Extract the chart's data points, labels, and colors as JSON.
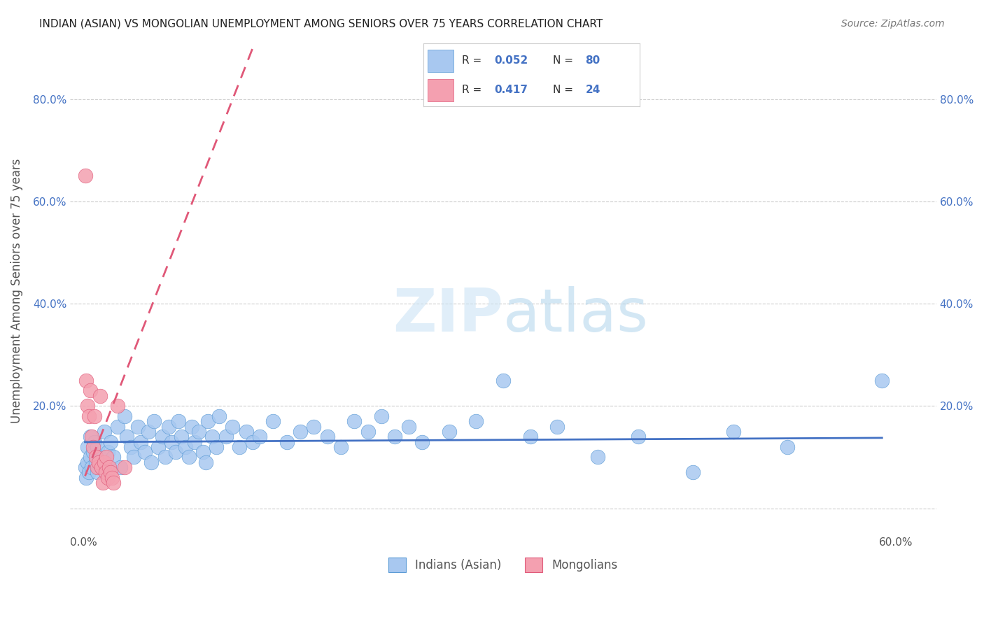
{
  "title": "INDIAN (ASIAN) VS MONGOLIAN UNEMPLOYMENT AMONG SENIORS OVER 75 YEARS CORRELATION CHART",
  "source": "Source: ZipAtlas.com",
  "ylabel": "Unemployment Among Seniors over 75 years",
  "ylim": [
    -0.05,
    0.9
  ],
  "xlim": [
    -0.01,
    0.63
  ],
  "indian_R": 0.052,
  "indian_N": 80,
  "mongolian_R": 0.417,
  "mongolian_N": 24,
  "legend_label_indian": "Indians (Asian)",
  "legend_label_mongolian": "Mongolians",
  "indian_color": "#a8c8f0",
  "indian_color_dark": "#5b9bd5",
  "mongolian_color": "#f4a0b0",
  "mongolian_color_dark": "#e05a7a",
  "trend_indian_color": "#4472c4",
  "trend_mongolian_color": "#e05878",
  "watermark_zip": "ZIP",
  "watermark_atlas": "atlas",
  "indian_x": [
    0.001,
    0.002,
    0.003,
    0.003,
    0.004,
    0.005,
    0.005,
    0.006,
    0.007,
    0.008,
    0.009,
    0.01,
    0.01,
    0.012,
    0.013,
    0.015,
    0.016,
    0.018,
    0.02,
    0.022,
    0.025,
    0.027,
    0.03,
    0.032,
    0.035,
    0.037,
    0.04,
    0.042,
    0.045,
    0.048,
    0.05,
    0.052,
    0.055,
    0.058,
    0.06,
    0.063,
    0.065,
    0.068,
    0.07,
    0.072,
    0.075,
    0.078,
    0.08,
    0.082,
    0.085,
    0.088,
    0.09,
    0.092,
    0.095,
    0.098,
    0.1,
    0.105,
    0.11,
    0.115,
    0.12,
    0.125,
    0.13,
    0.14,
    0.15,
    0.16,
    0.17,
    0.18,
    0.19,
    0.2,
    0.21,
    0.22,
    0.23,
    0.24,
    0.25,
    0.27,
    0.29,
    0.31,
    0.33,
    0.35,
    0.38,
    0.41,
    0.45,
    0.48,
    0.52,
    0.59
  ],
  "indian_y": [
    0.08,
    0.06,
    0.09,
    0.12,
    0.07,
    0.1,
    0.14,
    0.08,
    0.11,
    0.13,
    0.09,
    0.07,
    0.12,
    0.1,
    0.08,
    0.15,
    0.09,
    0.11,
    0.13,
    0.1,
    0.16,
    0.08,
    0.18,
    0.14,
    0.12,
    0.1,
    0.16,
    0.13,
    0.11,
    0.15,
    0.09,
    0.17,
    0.12,
    0.14,
    0.1,
    0.16,
    0.13,
    0.11,
    0.17,
    0.14,
    0.12,
    0.1,
    0.16,
    0.13,
    0.15,
    0.11,
    0.09,
    0.17,
    0.14,
    0.12,
    0.18,
    0.14,
    0.16,
    0.12,
    0.15,
    0.13,
    0.14,
    0.17,
    0.13,
    0.15,
    0.16,
    0.14,
    0.12,
    0.17,
    0.15,
    0.18,
    0.14,
    0.16,
    0.13,
    0.15,
    0.17,
    0.25,
    0.14,
    0.16,
    0.1,
    0.14,
    0.07,
    0.15,
    0.12,
    0.25
  ],
  "mongolian_x": [
    0.001,
    0.002,
    0.003,
    0.004,
    0.005,
    0.006,
    0.007,
    0.008,
    0.009,
    0.01,
    0.011,
    0.012,
    0.013,
    0.014,
    0.015,
    0.016,
    0.017,
    0.018,
    0.019,
    0.02,
    0.021,
    0.022,
    0.025,
    0.03
  ],
  "mongolian_y": [
    0.65,
    0.25,
    0.2,
    0.18,
    0.23,
    0.14,
    0.12,
    0.18,
    0.1,
    0.08,
    0.09,
    0.22,
    0.08,
    0.05,
    0.09,
    0.07,
    0.1,
    0.06,
    0.08,
    0.07,
    0.06,
    0.05,
    0.2,
    0.08
  ],
  "ytick_positions": [
    0.0,
    0.2,
    0.4,
    0.6,
    0.8
  ],
  "ytick_labels": [
    "",
    "20.0%",
    "40.0%",
    "60.0%",
    "80.0%"
  ],
  "xtick_positions": [
    0.0,
    0.1,
    0.2,
    0.3,
    0.4,
    0.5,
    0.6
  ],
  "xtick_labels": [
    "0.0%",
    "",
    "",
    "",
    "",
    "",
    "60.0%"
  ]
}
